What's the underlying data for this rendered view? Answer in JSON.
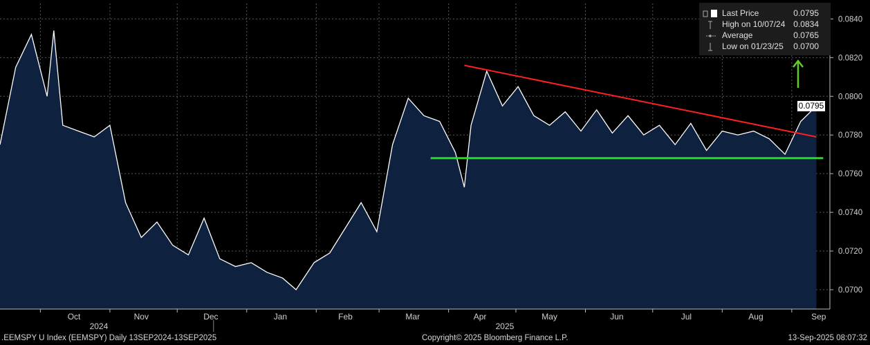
{
  "chart_data": {
    "type": "area",
    "x_dates": [
      "2024-09-13",
      "2024-09-20",
      "2024-09-27",
      "2024-10-04",
      "2024-10-07",
      "2024-10-11",
      "2024-10-18",
      "2024-10-25",
      "2024-11-01",
      "2024-11-08",
      "2024-11-15",
      "2024-11-22",
      "2024-11-29",
      "2024-12-06",
      "2024-12-13",
      "2024-12-20",
      "2024-12-27",
      "2025-01-03",
      "2025-01-10",
      "2025-01-17",
      "2025-01-23",
      "2025-01-31",
      "2025-02-07",
      "2025-02-14",
      "2025-02-21",
      "2025-02-28",
      "2025-03-07",
      "2025-03-14",
      "2025-03-21",
      "2025-03-28",
      "2025-04-04",
      "2025-04-08",
      "2025-04-11",
      "2025-04-18",
      "2025-04-25",
      "2025-05-02",
      "2025-05-09",
      "2025-05-16",
      "2025-05-23",
      "2025-05-30",
      "2025-06-06",
      "2025-06-13",
      "2025-06-20",
      "2025-06-27",
      "2025-07-04",
      "2025-07-11",
      "2025-07-18",
      "2025-07-25",
      "2025-08-01",
      "2025-08-08",
      "2025-08-15",
      "2025-08-22",
      "2025-08-29",
      "2025-09-05",
      "2025-09-12"
    ],
    "series": [
      {
        "values": [
          0.0775,
          0.0815,
          0.0832,
          0.08,
          0.0834,
          0.0785,
          0.0782,
          0.0779,
          0.0785,
          0.0745,
          0.0727,
          0.0735,
          0.0723,
          0.0718,
          0.0737,
          0.0716,
          0.0712,
          0.0714,
          0.0709,
          0.0706,
          0.07,
          0.0714,
          0.0719,
          0.0732,
          0.0745,
          0.073,
          0.0775,
          0.0799,
          0.079,
          0.0787,
          0.0771,
          0.0753,
          0.0785,
          0.0813,
          0.0795,
          0.0805,
          0.079,
          0.0785,
          0.0792,
          0.0782,
          0.0793,
          0.0781,
          0.079,
          0.078,
          0.0785,
          0.0775,
          0.0786,
          0.0772,
          0.0782,
          0.078,
          0.0782,
          0.0778,
          0.077,
          0.0787,
          0.0795
        ],
        "color": "#ffffff",
        "fill": "#0e2240"
      }
    ],
    "trendlines": [
      {
        "color": "#ff2020",
        "from": {
          "x": "2025-04-08",
          "y": 0.0816
        },
        "to": {
          "x": "2025-09-12",
          "y": 0.0779
        }
      },
      {
        "color": "#22dd22",
        "from": {
          "x": "2025-03-24",
          "y": 0.0768
        },
        "to": {
          "x": "2025-09-15",
          "y": 0.0768
        }
      }
    ],
    "arrow_color": "#66cc22",
    "ylim": [
      0.069,
      0.0848
    ],
    "y_ticks": [
      "0.0700",
      "0.0720",
      "0.0740",
      "0.0760",
      "0.0780",
      "0.0800",
      "0.0820",
      "0.0840"
    ],
    "y_axis_side": "right",
    "month_labels": [
      "Oct",
      "Nov",
      "Dec",
      "Jan",
      "Feb",
      "Mar",
      "Apr",
      "May",
      "Jun",
      "Jul",
      "Aug",
      "Sep"
    ],
    "year_labels": [
      "2024",
      "2025"
    ],
    "grid": true,
    "legend_position": "top-right",
    "last_value_label": "0.0795"
  },
  "legend": {
    "rows": [
      {
        "label": "Last Price",
        "value": "0.0795",
        "icon": "last-price-icon"
      },
      {
        "label": "High on 10/07/24",
        "value": "0.0834",
        "icon": "high-marker-icon"
      },
      {
        "label": "Average",
        "value": "0.0765",
        "icon": "average-marker-icon"
      },
      {
        "label": "Low on 01/23/25",
        "value": "0.0700",
        "icon": "low-marker-icon"
      }
    ]
  },
  "footer": {
    "left": ".EEMSPY U Index (EEMSPY)  Daily 13SEP2024-13SEP2025",
    "center": "Copyright© 2025 Bloomberg Finance L.P.",
    "right": "13-Sep-2025 08:07:32"
  }
}
